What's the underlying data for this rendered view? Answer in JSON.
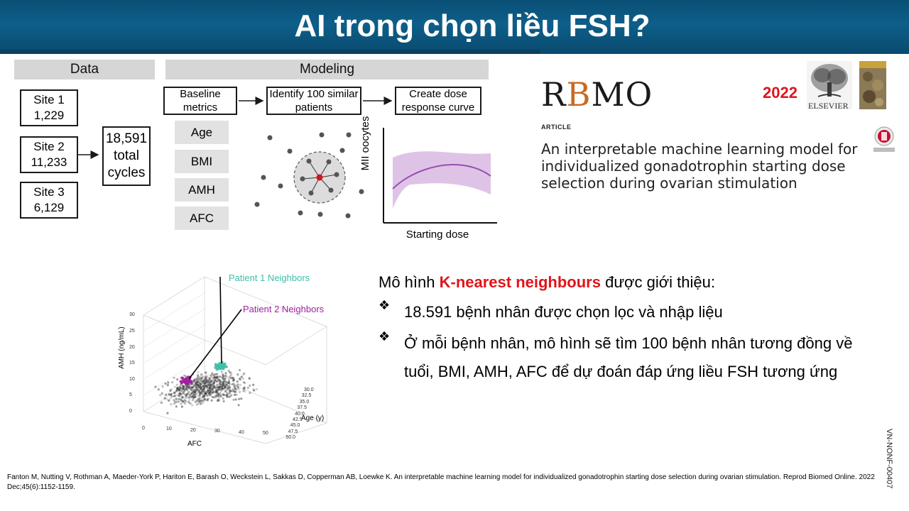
{
  "title": "AI trong chọn liều FSH?",
  "diagram": {
    "data_header": "Data",
    "modeling_header": "Modeling",
    "sites": [
      {
        "name": "Site 1",
        "count": "1,229"
      },
      {
        "name": "Site 2",
        "count": "11,233"
      },
      {
        "name": "Site 3",
        "count": "6,129"
      }
    ],
    "total": [
      "18,591",
      "total",
      "cycles"
    ],
    "steps": [
      [
        "Baseline",
        "metrics"
      ],
      [
        "Identify 100 similar",
        "patients"
      ],
      [
        "Create dose",
        "response curve"
      ]
    ],
    "metrics": [
      "Age",
      "BMI",
      "AMH",
      "AFC"
    ],
    "curve_ylabel": "MII oocytes",
    "curve_xlabel": "Starting dose"
  },
  "journal": {
    "logo_r": "R",
    "logo_b": "B",
    "logo_mo": "MO",
    "year": "2022",
    "publisher": "ELSEVIER",
    "article_label": "ARTICLE",
    "article_title": "An interpretable machine learning model for individualized gonadotrophin starting dose selection during ovarian stimulation"
  },
  "scatter": {
    "label_patient1": "Patient 1 Neighbors",
    "label_patient2": "Patient 2 Neighbors",
    "axis_z": "AMH (ng/mL)",
    "axis_x": "AFC",
    "axis_y": "Age (y)",
    "z_ticks": [
      "0",
      "5",
      "10",
      "15",
      "20",
      "25",
      "30"
    ],
    "x_ticks": [
      "0",
      "10",
      "20",
      "30",
      "40",
      "50"
    ],
    "y_ticks": [
      "30.0",
      "32.5",
      "35.0",
      "37.5",
      "40.0",
      "42.5",
      "45.0",
      "47.5",
      "50.0"
    ],
    "colors": {
      "patient1": "#3fbfa8",
      "patient2": "#a020a0"
    }
  },
  "content": {
    "intro_before": "Mô hình ",
    "intro_highlight": "K-nearest neighbours",
    "intro_after": " được giới thiệu:",
    "bullet_marker": "❖",
    "bullets": [
      "18.591 bệnh nhân được chọn lọc và nhập liệu",
      "Ở mỗi bệnh nhân, mô hình sẽ tìm 100 bệnh nhân tương đồng về tuổi, BMI, AMH, AFC để dự đoán đáp ứng liều FSH tương ứng"
    ]
  },
  "citation": "Fanton M, Nutting V, Rothman A, Maeder-York P, Hariton E, Barash O, Weckstein L, Sakkas D, Copperman AB, Loewke K. An interpretable machine learning model for individualized gonadotrophin starting dose selection during ovarian stimulation. Reprod Biomed Online. 2022 Dec;45(6):1152-1159.",
  "doc_code": "VN-NONF-00407"
}
